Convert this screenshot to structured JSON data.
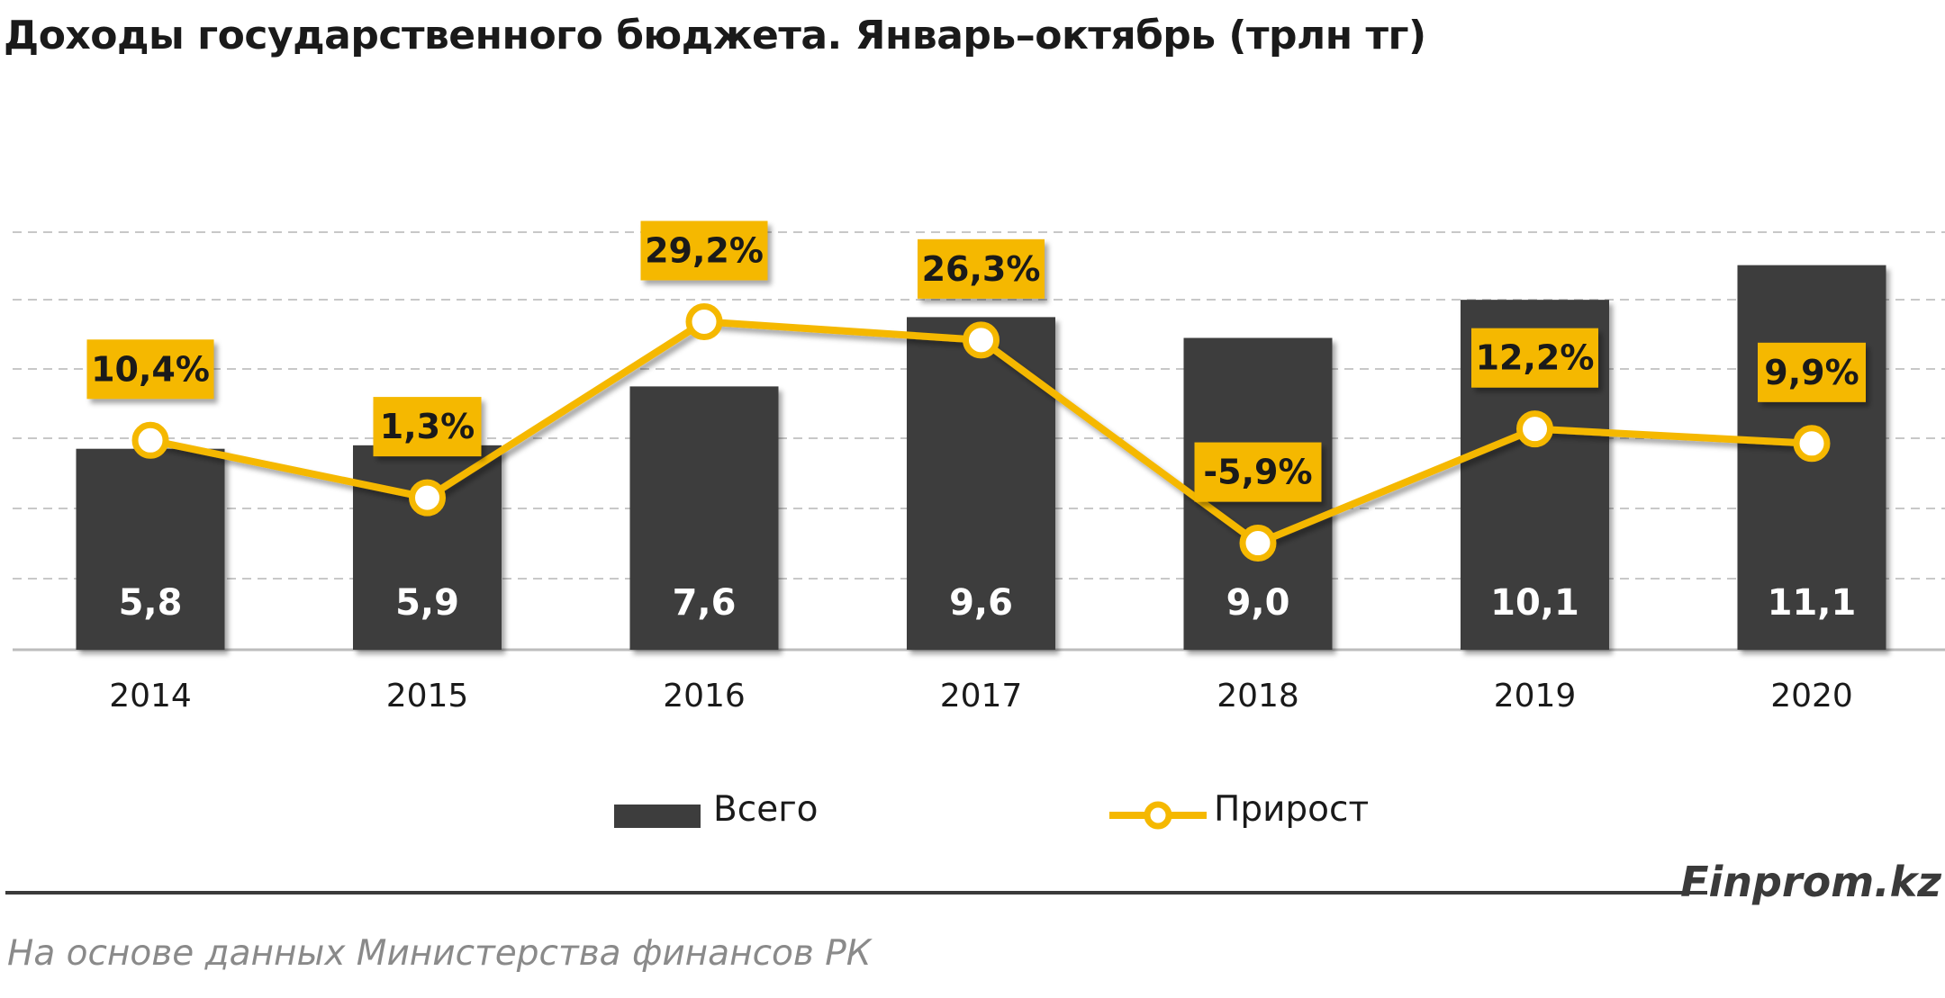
{
  "title": "Доходы государственного бюджета. Январь–октябрь (трлн тг)",
  "brand": "Finprom.kz",
  "source": "На основе данных Министерства финансов РК",
  "colors": {
    "bar": "#3d3d3d",
    "line": "#f5b800",
    "marker_fill": "#ffffff",
    "label_box": "#f5b800",
    "grid": "#c8c8c8"
  },
  "chart_data": {
    "type": "bar",
    "categories": [
      "2014",
      "2015",
      "2016",
      "2017",
      "2018",
      "2019",
      "2020"
    ],
    "series": [
      {
        "name": "Всего",
        "type": "bar",
        "axis": "left",
        "values": [
          5.8,
          5.9,
          7.6,
          9.6,
          9.0,
          10.1,
          11.1
        ],
        "labels": [
          "5,8",
          "5,9",
          "7,6",
          "9,6",
          "9,0",
          "10,1",
          "11,1"
        ]
      },
      {
        "name": "Прирост",
        "type": "line",
        "axis": "right",
        "values": [
          10.4,
          1.3,
          29.2,
          26.3,
          -5.9,
          12.2,
          9.9
        ],
        "labels": [
          "10,4%",
          "1,3%",
          "29,2%",
          "26,3%",
          "-5,9%",
          "12,2%",
          "9,9%"
        ]
      }
    ],
    "grid": true,
    "legend": "bottom"
  }
}
